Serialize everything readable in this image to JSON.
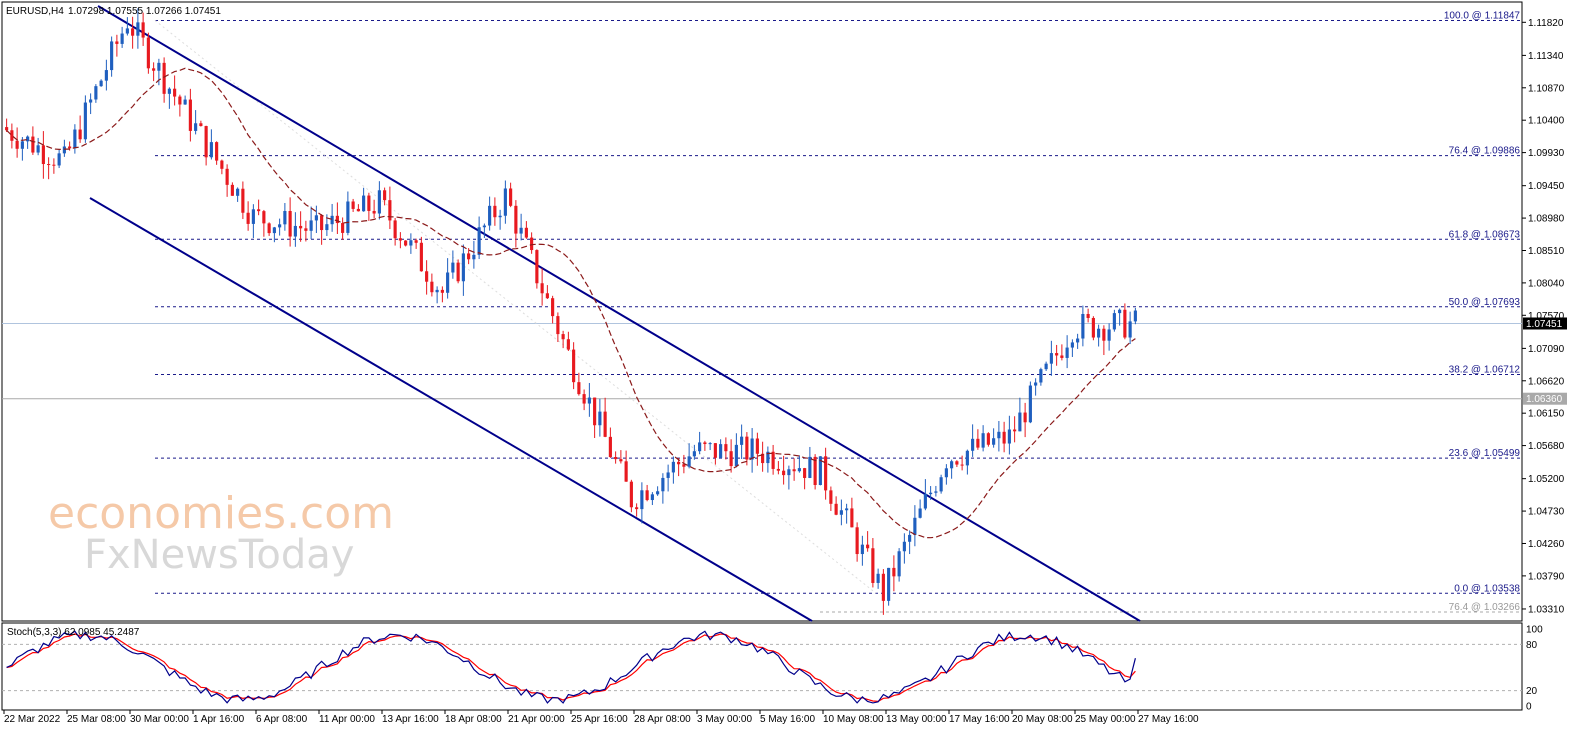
{
  "header": {
    "symbol_label": "EURUSD,H4",
    "ohlc": "1.07298 1.07555 1.07266 1.07451"
  },
  "watermark": {
    "line1": "economies.com",
    "line2": "FxNewsToday"
  },
  "price_axis": {
    "ticks": [
      "1.11820",
      "1.11340",
      "1.10870",
      "1.10400",
      "1.09930",
      "1.09450",
      "1.08980",
      "1.08510",
      "1.08040",
      "1.07570",
      "1.07090",
      "1.06620",
      "1.06150",
      "1.05680",
      "1.05200",
      "1.04730",
      "1.04260",
      "1.03790",
      "1.03310"
    ],
    "current_price_label": "1.07451",
    "current_price": 1.07451,
    "ref_price_label": "1.06360",
    "ref_price": 1.0636
  },
  "time_axis": {
    "ticks": [
      "22 Mar 2022",
      "25 Mar 08:00",
      "30 Mar 00:00",
      "1 Apr 16:00",
      "6 Apr 08:00",
      "11 Apr 00:00",
      "13 Apr 16:00",
      "18 Apr 08:00",
      "21 Apr 00:00",
      "25 Apr 16:00",
      "28 Apr 08:00",
      "3 May 00:00",
      "5 May 16:00",
      "10 May 08:00",
      "13 May 00:00",
      "17 May 16:00",
      "20 May 08:00",
      "25 May 00:00",
      "27 May 16:00"
    ]
  },
  "stoch": {
    "label": "Stoch(5,3,3) 62.0985 45.2487",
    "axis_ticks": [
      "100",
      "80",
      "20",
      "0"
    ],
    "main_color": "#00008b",
    "signal_color": "#ff0000"
  },
  "colors": {
    "bull": "#1f5fbf",
    "bear": "#e8191f",
    "channel": "#00008b",
    "fib": "#1a1a8a",
    "ma": "#8b1a1a"
  },
  "chart_data": [
    {
      "type": "candlestick",
      "title": "EURUSD,H4",
      "ylim": [
        1.0315,
        1.121
      ],
      "x_range": [
        "22 Mar 2022",
        "27 May 2022"
      ],
      "key_points": [
        {
          "x": "22 Mar 2022",
          "y": 1.103
        },
        {
          "x": "25 Mar 08:00",
          "y": 1.098
        },
        {
          "x": "30 Mar 00:00",
          "y": 1.1185
        },
        {
          "x": "1 Apr 16:00",
          "y": 1.104
        },
        {
          "x": "6 Apr 08:00",
          "y": 1.09
        },
        {
          "x": "11 Apr 00:00",
          "y": 1.088
        },
        {
          "x": "13 Apr 16:00",
          "y": 1.092
        },
        {
          "x": "18 Apr 08:00",
          "y": 1.079
        },
        {
          "x": "21 Apr 00:00",
          "y": 1.093
        },
        {
          "x": "25 Apr 16:00",
          "y": 1.07
        },
        {
          "x": "28 Apr 08:00",
          "y": 1.049
        },
        {
          "x": "3 May 00:00",
          "y": 1.056
        },
        {
          "x": "5 May 16:00",
          "y": 1.056
        },
        {
          "x": "10 May 08:00",
          "y": 1.053
        },
        {
          "x": "13 May 00:00",
          "y": 1.0354
        },
        {
          "x": "17 May 16:00",
          "y": 1.055
        },
        {
          "x": "20 May 08:00",
          "y": 1.058
        },
        {
          "x": "25 May 00:00",
          "y": 1.074
        },
        {
          "x": "27 May 16:00",
          "y": 1.0745
        }
      ],
      "fibonacci": [
        {
          "label": "100.0 @ 1.11847",
          "price": 1.11847
        },
        {
          "label": "76.4 @ 1.09886",
          "price": 1.09886
        },
        {
          "label": "61.8 @ 1.08673",
          "price": 1.08673
        },
        {
          "label": "50.0 @ 1.07693",
          "price": 1.07693
        },
        {
          "label": "38.2 @ 1.06712",
          "price": 1.06712
        },
        {
          "label": "23.6 @ 1.05499",
          "price": 1.05499
        },
        {
          "label": "0.0 @ 1.03538",
          "price": 1.03538
        },
        {
          "label": "76.4 @ 1.03266",
          "price": 1.03266
        }
      ]
    },
    {
      "type": "line",
      "title": "Stoch(5,3,3) 62.0985 45.2487",
      "ylim": [
        0,
        100
      ],
      "series": [
        {
          "name": "62.0985",
          "last": 62.0985
        },
        {
          "name": "45.2487",
          "last": 45.2487
        }
      ]
    }
  ]
}
